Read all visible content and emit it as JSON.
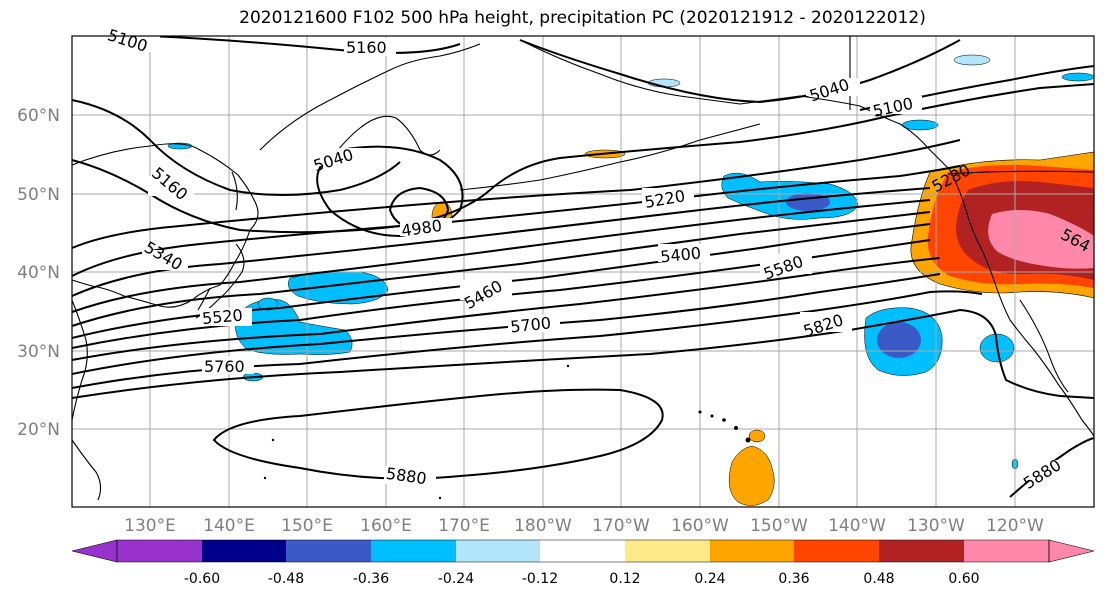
{
  "title": "2020121600 F102 500 hPa height, precipitation PC (2020121912 - 2020122012)",
  "map": {
    "lat_labels": [
      "60°N",
      "50°N",
      "40°N",
      "30°N",
      "20°N"
    ],
    "lon_labels": [
      "130°E",
      "140°E",
      "150°E",
      "160°E",
      "170°E",
      "180°W",
      "170°W",
      "160°W",
      "150°W",
      "140°W",
      "130°W",
      "120°W"
    ],
    "contour_labels": [
      "5100",
      "5160",
      "5160",
      "5040",
      "5040",
      "5100",
      "4980",
      "5220",
      "5340",
      "5400",
      "5460",
      "5520",
      "5580",
      "5700",
      "5760",
      "5820",
      "5880",
      "5880",
      "5280",
      "564"
    ],
    "colors": {
      "light_blue": "#b3e5fc",
      "sky_blue": "#00bfff",
      "mid_blue": "#3a5bc7",
      "light_yellow": "#ffea8a",
      "orange": "#ffa500",
      "orange_red": "#ff4500",
      "dark_red": "#b22222",
      "pink": "#ff88aa"
    }
  },
  "colorbar": {
    "ticks": [
      "-0.60",
      "-0.48",
      "-0.36",
      "-0.24",
      "-0.12",
      "0.12",
      "0.24",
      "0.36",
      "0.48",
      "0.60"
    ],
    "colors": [
      "#9932cc",
      "#00008b",
      "#3a5bc7",
      "#00bfff",
      "#b3e5fc",
      "#ffffff",
      "#ffea8a",
      "#ffa500",
      "#ff4500",
      "#b22222",
      "#ff88aa"
    ]
  }
}
